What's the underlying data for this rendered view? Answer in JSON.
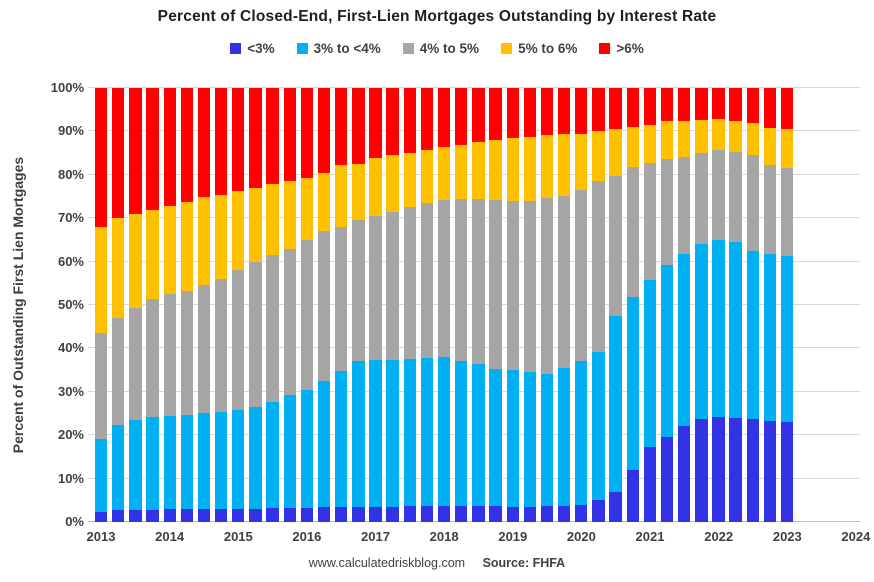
{
  "title": "Percent of Closed-End, First-Lien Mortgages Outstanding by Interest Rate",
  "y_axis": {
    "title": "Percent of Outstanding First Lien Mortgages",
    "tick_labels": [
      "0%",
      "10%",
      "20%",
      "30%",
      "40%",
      "50%",
      "60%",
      "70%",
      "80%",
      "90%",
      "100%"
    ]
  },
  "x_axis": {
    "tick_labels": [
      "2013",
      "2014",
      "2015",
      "2016",
      "2017",
      "2018",
      "2019",
      "2020",
      "2021",
      "2022",
      "2023",
      "2024"
    ]
  },
  "footer": {
    "site": "www.calculatedriskblog.com",
    "source": "Source: FHFA"
  },
  "colors": {
    "grid": "#d9d9d9",
    "axis": "#bfbfbf",
    "text": "#404040"
  },
  "chart_data": {
    "type": "bar",
    "stacked": true,
    "ylim": [
      0,
      100
    ],
    "grid": true,
    "legend_position": "top",
    "categories": [
      "2013 Q1",
      "2013 Q2",
      "2013 Q3",
      "2013 Q4",
      "2014 Q1",
      "2014 Q2",
      "2014 Q3",
      "2014 Q4",
      "2015 Q1",
      "2015 Q2",
      "2015 Q3",
      "2015 Q4",
      "2016 Q1",
      "2016 Q2",
      "2016 Q3",
      "2016 Q4",
      "2017 Q1",
      "2017 Q2",
      "2017 Q3",
      "2017 Q4",
      "2018 Q1",
      "2018 Q2",
      "2018 Q3",
      "2018 Q4",
      "2019 Q1",
      "2019 Q2",
      "2019 Q3",
      "2019 Q4",
      "2020 Q1",
      "2020 Q2",
      "2020 Q3",
      "2020 Q4",
      "2021 Q1",
      "2021 Q2",
      "2021 Q3",
      "2021 Q4",
      "2022 Q1",
      "2022 Q2",
      "2022 Q3",
      "2022 Q4",
      "2023 Q1"
    ],
    "series": [
      {
        "name": "<3%",
        "color": "#3333e6",
        "values": [
          2.3,
          2.7,
          2.8,
          2.8,
          2.9,
          2.9,
          3.0,
          3.0,
          3.1,
          3.1,
          3.2,
          3.3,
          3.3,
          3.4,
          3.5,
          3.5,
          3.5,
          3.5,
          3.6,
          3.6,
          3.7,
          3.7,
          3.6,
          3.6,
          3.5,
          3.5,
          3.6,
          3.7,
          3.8,
          5.0,
          7.0,
          12.0,
          17.3,
          19.6,
          22.2,
          23.8,
          24.3,
          23.9,
          23.7,
          23.2,
          23.1
        ]
      },
      {
        "name": "3% to <4%",
        "color": "#00b0f0",
        "values": [
          16.9,
          19.7,
          20.6,
          21.3,
          21.5,
          21.8,
          22.0,
          22.3,
          22.7,
          23.4,
          24.5,
          25.9,
          27.2,
          29.1,
          31.3,
          33.5,
          33.8,
          33.9,
          33.9,
          34.2,
          34.4,
          33.4,
          32.7,
          31.6,
          31.5,
          31.0,
          30.6,
          31.7,
          33.3,
          34.1,
          40.5,
          39.9,
          38.5,
          39.5,
          39.6,
          40.2,
          40.7,
          40.6,
          38.8,
          38.5,
          38.1
        ]
      },
      {
        "name": "4% to 5%",
        "color": "#a6a6a6",
        "values": [
          24.3,
          24.6,
          25.9,
          27.3,
          28.1,
          28.6,
          29.5,
          30.7,
          32.2,
          33.3,
          33.8,
          33.8,
          34.5,
          34.5,
          33.2,
          32.5,
          33.1,
          34.0,
          35.0,
          35.7,
          36.1,
          37.4,
          38.2,
          39.0,
          39.0,
          39.5,
          40.4,
          39.8,
          39.4,
          39.4,
          32.3,
          29.8,
          26.9,
          24.6,
          22.4,
          21.0,
          20.8,
          20.7,
          22.0,
          20.5,
          20.3
        ]
      },
      {
        "name": "5% to 6%",
        "color": "#ffc000",
        "values": [
          24.5,
          23.0,
          21.7,
          20.6,
          20.2,
          20.5,
          20.3,
          19.4,
          18.2,
          17.2,
          16.3,
          15.5,
          14.2,
          13.4,
          14.2,
          13.0,
          13.4,
          13.2,
          12.5,
          12.3,
          12.3,
          12.4,
          13.0,
          13.9,
          14.5,
          14.6,
          14.5,
          14.1,
          13.0,
          11.7,
          10.8,
          9.2,
          8.8,
          8.6,
          8.3,
          7.7,
          7.1,
          7.3,
          7.4,
          8.6,
          9.1
        ]
      },
      {
        "name": ">6%",
        "color": "#ff0000",
        "values": [
          32.0,
          30.0,
          29.0,
          28.0,
          27.3,
          26.2,
          25.2,
          24.6,
          23.8,
          23.0,
          22.2,
          21.5,
          20.8,
          19.6,
          17.8,
          17.5,
          16.2,
          15.4,
          15.0,
          14.2,
          13.5,
          13.1,
          12.5,
          11.9,
          11.5,
          11.4,
          10.9,
          10.7,
          10.5,
          9.8,
          9.4,
          9.1,
          8.5,
          7.7,
          7.5,
          7.3,
          7.1,
          7.5,
          8.1,
          9.2,
          9.4
        ]
      }
    ]
  }
}
